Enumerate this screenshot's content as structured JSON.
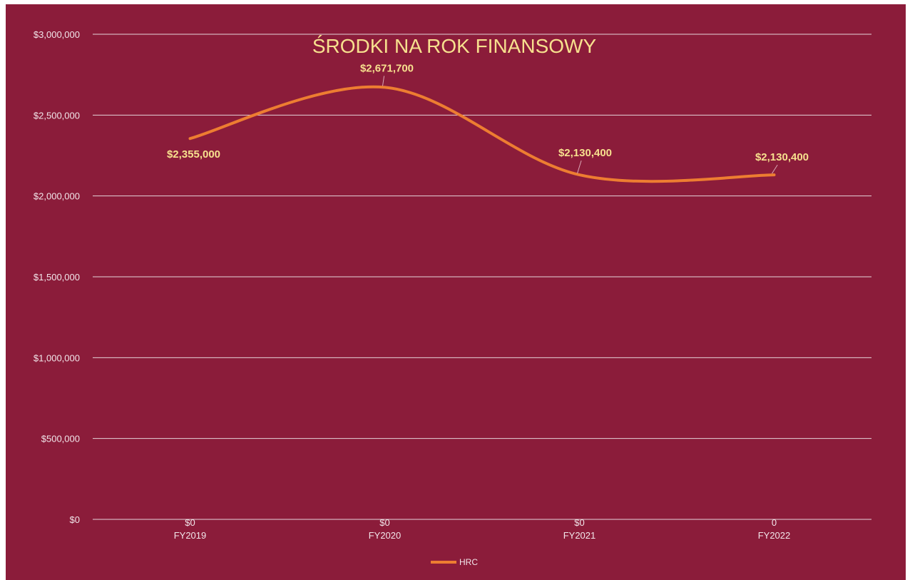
{
  "chart_data": {
    "type": "line",
    "title": "ŚRODKI NA ROK FINANSOWY",
    "categories": [
      "FY2019",
      "FY2020",
      "FY2021",
      "FY2022"
    ],
    "series": [
      {
        "name": "HRC",
        "values": [
          2355000,
          2671700,
          2130400,
          2130400
        ],
        "data_labels": [
          "$2,355,000",
          "$2,671,700",
          "$2,130,400",
          "$2,130,400"
        ],
        "color": "#ed7d31",
        "smooth": true
      }
    ],
    "secondary_labels": [
      "$0",
      "$0",
      "$0",
      "0"
    ],
    "y_ticks": [
      0,
      500000,
      1000000,
      1500000,
      2000000,
      2500000,
      3000000
    ],
    "y_tick_labels": [
      "$0",
      "$500,000",
      "$1,000,000",
      "$1,500,000",
      "$2,000,000",
      "$2,500,000",
      "$3,000,000"
    ],
    "ylim": [
      0,
      3000000
    ],
    "grid": true,
    "legend_position": "bottom",
    "colors": {
      "background": "#8b1c3a",
      "gridline": "#e6d3d9",
      "axis_text": "#f2e6ea",
      "title": "#f7e08e",
      "data_label": "#f7e08e",
      "line": "#ed7d31"
    }
  }
}
